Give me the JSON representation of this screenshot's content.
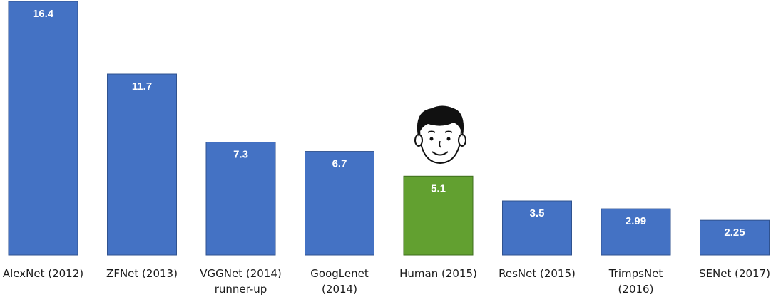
{
  "chart_data": {
    "type": "bar",
    "title": "",
    "xlabel": "",
    "ylabel": "",
    "ylim": [
      0,
      16.4
    ],
    "grid": false,
    "legend": "none",
    "categories": [
      [
        "AlexNet (2012)"
      ],
      [
        "ZFNet (2013)"
      ],
      [
        "VGGNet (2014)",
        "runner-up"
      ],
      [
        "GoogLenet",
        "(2014)"
      ],
      [
        "Human (2015)"
      ],
      [
        "ResNet (2015)"
      ],
      [
        "TrimpsNet",
        "(2016)"
      ],
      [
        "SENet (2017)"
      ]
    ],
    "values": [
      16.4,
      11.7,
      7.3,
      6.7,
      5.1,
      3.5,
      2.99,
      2.25
    ],
    "value_labels": [
      "16.4",
      "11.7",
      "7.3",
      "6.7",
      "5.1",
      "3.5",
      "2.99",
      "2.25"
    ],
    "highlight_index": 4,
    "highlight_icon": "human-face-icon",
    "colors": {
      "bar": "#4472c4",
      "bar_edge": "#2f528f",
      "highlight": "#62a030",
      "highlight_edge": "#3e6e1c",
      "label": "#ffffff",
      "category_text": "#1a1a1a"
    }
  }
}
